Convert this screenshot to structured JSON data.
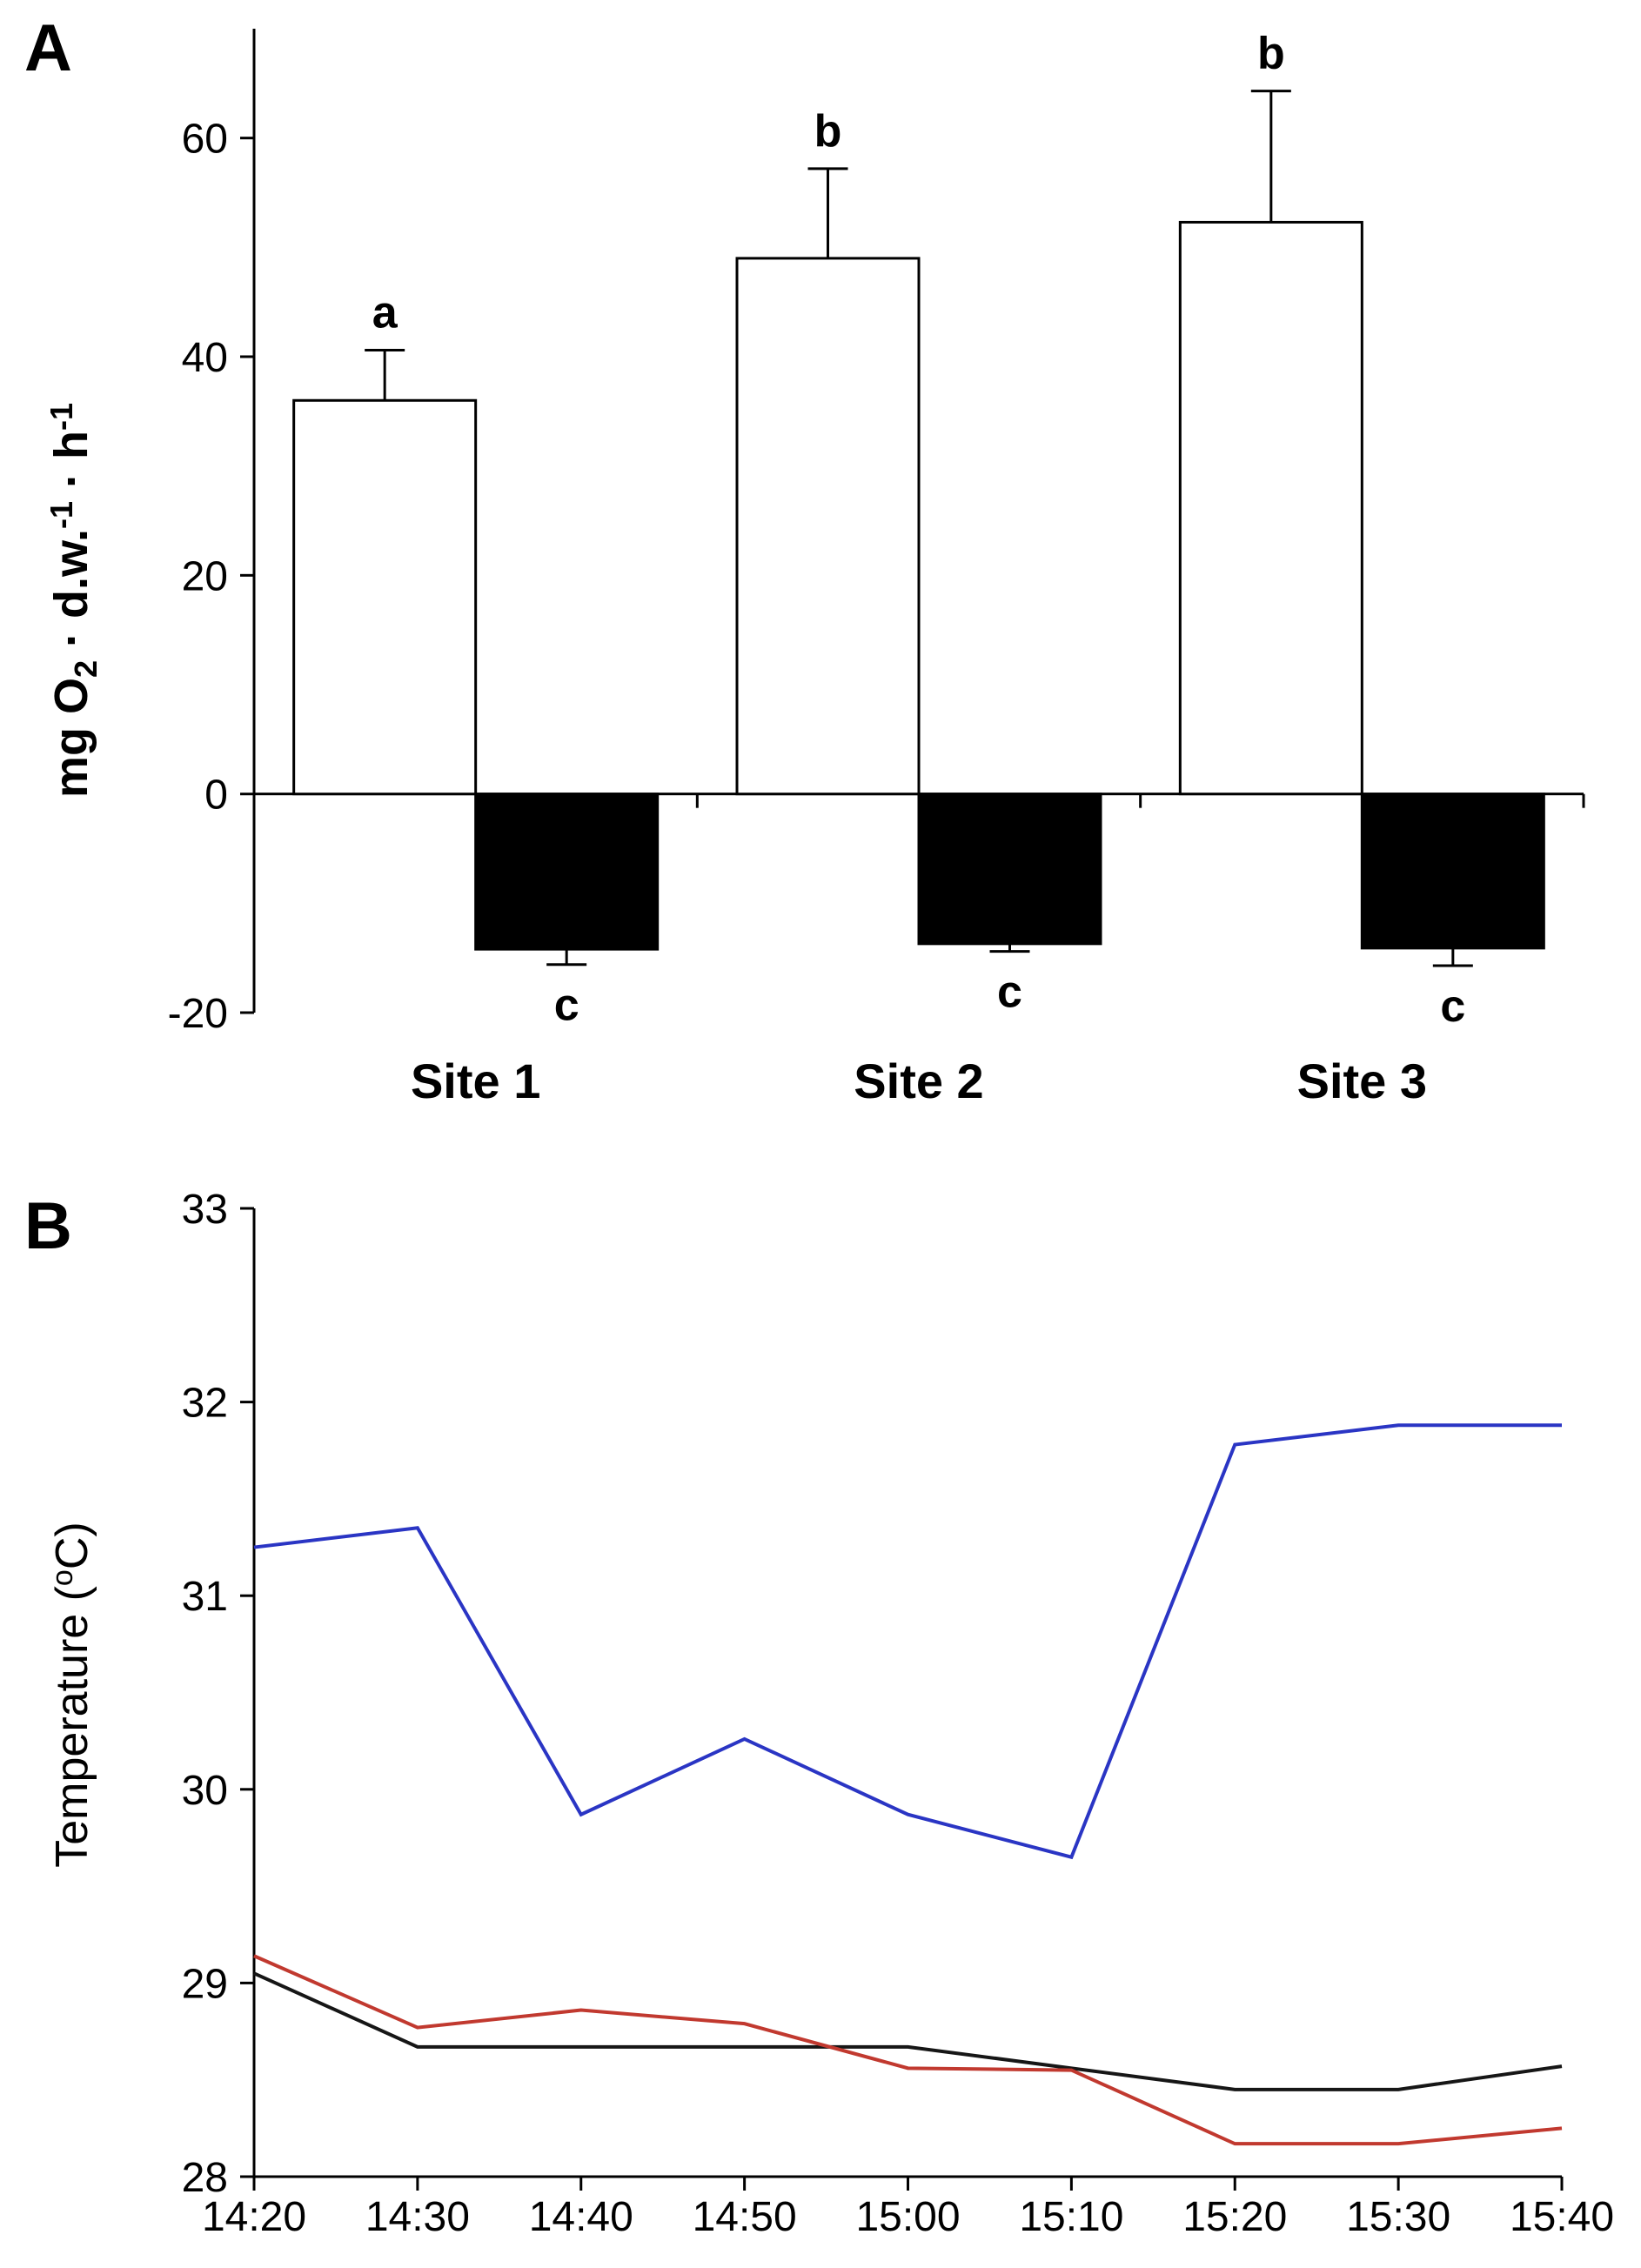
{
  "figure": {
    "background": "#ffffff",
    "panel_count": 2
  },
  "chart_data": [
    {
      "id": "panel-A",
      "panel_label": "A",
      "type": "bar",
      "ylabel_parts": [
        {
          "t": "mg O"
        },
        {
          "t": "2",
          "s": "sub"
        },
        {
          "t": " · d.w."
        },
        {
          "t": "-1",
          "s": "sup"
        },
        {
          "t": " · h"
        },
        {
          "t": "-1",
          "s": "sup"
        }
      ],
      "ylim": [
        -20,
        70
      ],
      "yticks": [
        60,
        40,
        20,
        0,
        -20
      ],
      "categories": [
        "Site 1",
        "Site 2",
        "Site 3"
      ],
      "series": [
        {
          "name": "white-bars",
          "fill": "#ffffff",
          "values": [
            36.0,
            49.0,
            52.3
          ],
          "errors": [
            4.6,
            8.2,
            12.0
          ],
          "letters": [
            "a",
            "b",
            "b"
          ]
        },
        {
          "name": "black-bars",
          "fill": "#000000",
          "values": [
            -14.2,
            -13.7,
            -14.1
          ],
          "errors": [
            1.4,
            0.7,
            1.6
          ],
          "letters": [
            "c",
            "c",
            "c"
          ]
        }
      ],
      "axis_color": "#000000",
      "grid": false,
      "legend": "none"
    },
    {
      "id": "panel-B",
      "panel_label": "B",
      "type": "line",
      "ylabel_parts": [
        {
          "t": "Temperature ("
        },
        {
          "t": "o",
          "s": "sup"
        },
        {
          "t": "C)"
        }
      ],
      "ylim": [
        28,
        33
      ],
      "yticks": [
        33,
        32,
        31,
        30,
        29,
        28
      ],
      "x": [
        "14:20",
        "14:30",
        "14:40",
        "14:50",
        "15:00",
        "15:10",
        "15:20",
        "15:30",
        "15:40"
      ],
      "series": [
        {
          "name": "blue-line",
          "color": "#2a35c4",
          "values": [
            31.25,
            31.35,
            29.87,
            30.26,
            29.87,
            29.65,
            31.78,
            31.88,
            31.88
          ]
        },
        {
          "name": "black-line",
          "color": "#161616",
          "values": [
            29.05,
            28.67,
            28.67,
            28.67,
            28.67,
            28.56,
            28.45,
            28.45,
            28.57
          ]
        },
        {
          "name": "red-line",
          "color": "#c1392f",
          "values": [
            29.14,
            28.77,
            28.86,
            28.79,
            28.56,
            28.55,
            28.17,
            28.17,
            28.25
          ]
        }
      ],
      "axis_color": "#000000",
      "grid": false,
      "legend": "none"
    }
  ]
}
